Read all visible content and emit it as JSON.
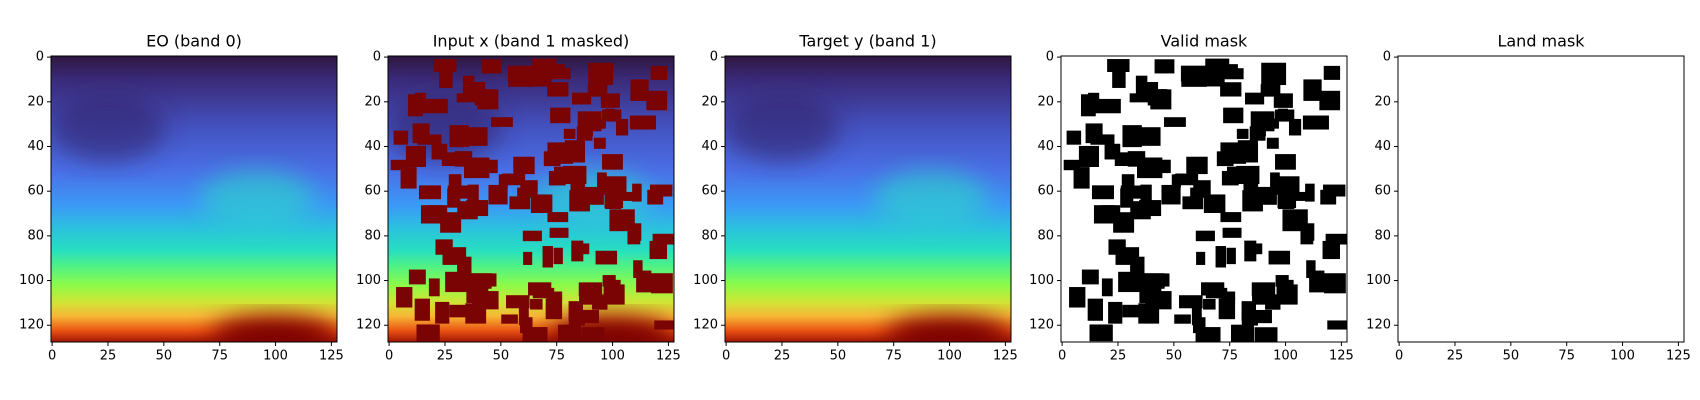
{
  "chart_data": [
    {
      "type": "image",
      "title": "EO (band 0)",
      "colormap": "turbo",
      "xlim": [
        -0.5,
        127.5
      ],
      "ylim": [
        127.5,
        -0.5
      ],
      "xticks": [
        0,
        25,
        50,
        75,
        100,
        125
      ],
      "yticks": [
        0,
        20,
        40,
        60,
        80,
        100,
        120
      ]
    },
    {
      "type": "image",
      "title": "Input x (band 1 masked)",
      "colormap": "turbo",
      "xlim": [
        -0.5,
        127.5
      ],
      "ylim": [
        127.5,
        -0.5
      ],
      "xticks": [
        0,
        25,
        50,
        75,
        100,
        125
      ],
      "yticks": [
        0,
        20,
        40,
        60,
        80,
        100,
        120
      ]
    },
    {
      "type": "image",
      "title": "Target y (band 1)",
      "colormap": "turbo",
      "xlim": [
        -0.5,
        127.5
      ],
      "ylim": [
        127.5,
        -0.5
      ],
      "xticks": [
        0,
        25,
        50,
        75,
        100,
        125
      ],
      "yticks": [
        0,
        20,
        40,
        60,
        80,
        100,
        120
      ]
    },
    {
      "type": "image",
      "title": "Valid mask",
      "colormap": "gray",
      "xlim": [
        -0.5,
        127.5
      ],
      "ylim": [
        127.5,
        -0.5
      ],
      "xticks": [
        0,
        25,
        50,
        75,
        100,
        125
      ],
      "yticks": [
        0,
        20,
        40,
        60,
        80,
        100,
        120
      ]
    },
    {
      "type": "image",
      "title": "Land mask",
      "colormap": "gray",
      "xlim": [
        -0.5,
        127.5
      ],
      "ylim": [
        127.5,
        -0.5
      ],
      "xticks": [
        0,
        25,
        50,
        75,
        100,
        125
      ],
      "yticks": [
        0,
        20,
        40,
        60,
        80,
        100,
        120
      ]
    }
  ]
}
